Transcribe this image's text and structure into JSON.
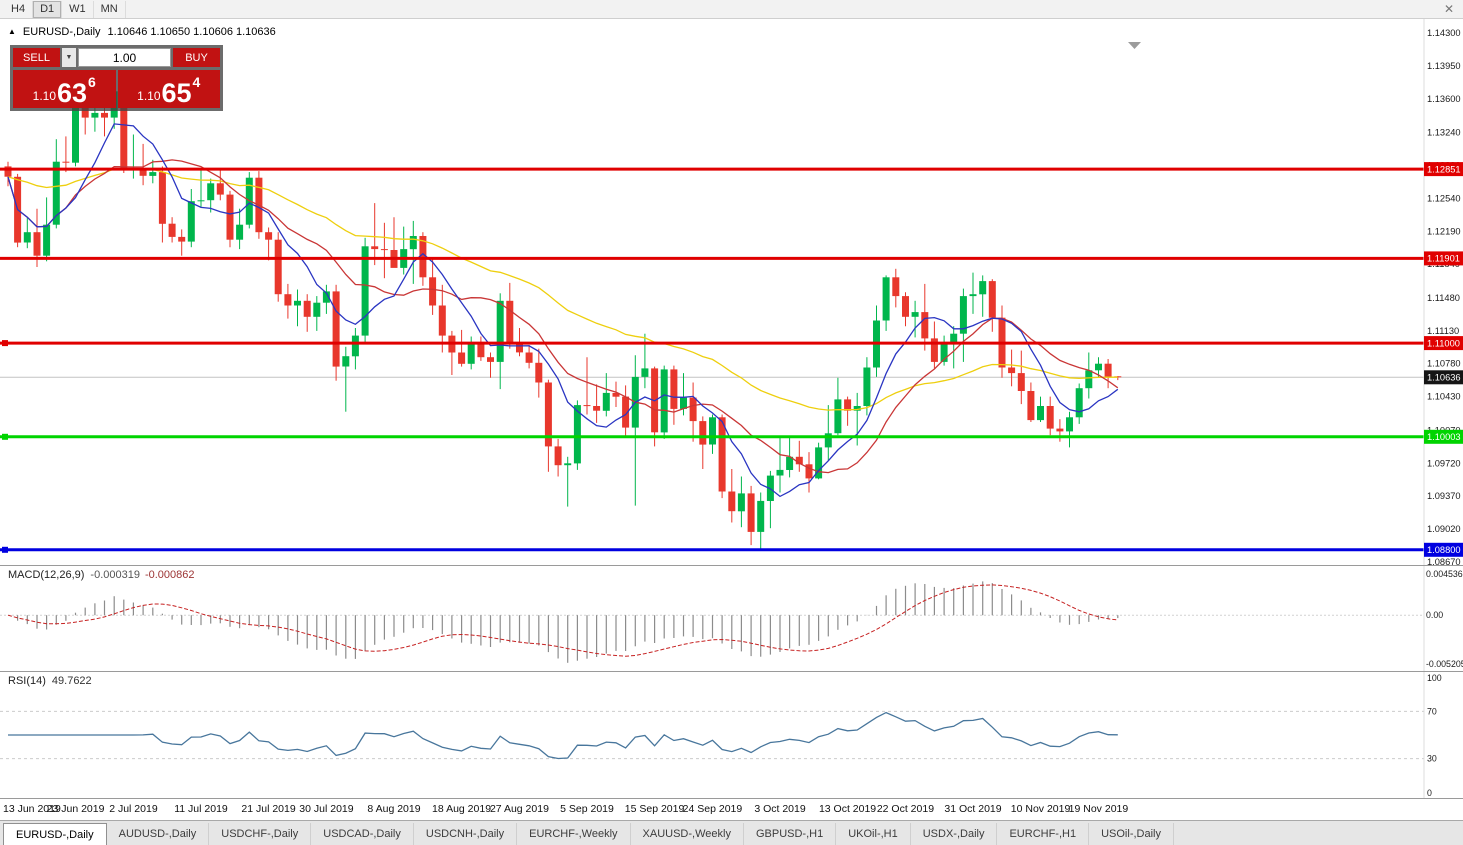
{
  "toolbar": {
    "timeframes": [
      "H4",
      "D1",
      "W1",
      "MN"
    ],
    "active": "D1",
    "close_glyph": "✕"
  },
  "chart": {
    "symbol_title": "EURUSD-,Daily",
    "ohlc": "1.10646 1.10650 1.10606 1.10636"
  },
  "trade_panel": {
    "sell_label": "SELL",
    "buy_label": "BUY",
    "volume": "1.00",
    "spinner_icon": "▼",
    "bid": {
      "prefix": "1.10",
      "big": "63",
      "pip": "6"
    },
    "ask": {
      "prefix": "1.10",
      "big": "65",
      "pip": "4"
    }
  },
  "colors": {
    "bull": "#00b64c",
    "bear": "#e8372c",
    "background": "#ffffff"
  },
  "current_price": {
    "value": 1.10636,
    "label": "1.10636"
  },
  "levels": [
    {
      "label": "1.12851",
      "price": 1.12851,
      "color": "#e00000",
      "handle": false
    },
    {
      "label": "1.11901",
      "price": 1.11901,
      "color": "#e00000",
      "handle": false
    },
    {
      "label": "1.11000",
      "price": 1.11,
      "color": "#e00000",
      "handle": true
    },
    {
      "label": "1.10003",
      "price": 1.10003,
      "color": "#00d400",
      "handle": true
    },
    {
      "label": "1.08800",
      "price": 1.088,
      "color": "#0000e0",
      "handle": true
    }
  ],
  "price_scale": {
    "ticks": [
      "1.14300",
      "1.13950",
      "1.13600",
      "1.13240",
      "1.12890",
      "1.12540",
      "1.12190",
      "1.11840",
      "1.11480",
      "1.11130",
      "1.10780",
      "1.10430",
      "1.10070",
      "1.09720",
      "1.09370",
      "1.09020",
      "1.08670"
    ]
  },
  "moving_averages": [
    {
      "period": 42,
      "method": "ema",
      "color": "#eecf0e"
    },
    {
      "period": 14,
      "method": "sma",
      "color": "#c93636"
    },
    {
      "period": 7,
      "method": "sma",
      "color": "#2a35c2"
    }
  ],
  "macd": {
    "label": "MACD(12,26,9)",
    "value1": "-0.000319",
    "value2": "-0.000862",
    "fast": 12,
    "slow": 26,
    "signal": 9,
    "range": [
      -0.005205,
      0.004536
    ],
    "scale_top": "0.004536",
    "scale_zero": "0.00",
    "scale_bottom": "-0.005205"
  },
  "rsi": {
    "label": "RSI(14)",
    "value": "49.7622",
    "period": 14,
    "guides": [
      70,
      30
    ],
    "scale": [
      100,
      70,
      30,
      0
    ]
  },
  "chart_data": {
    "type": "candlestick",
    "symbol": "EURUSD",
    "timeframe": "Daily",
    "ylim": [
      1.0867,
      1.143
    ],
    "x_labels": [
      {
        "index": 0,
        "label": "13 Jun 2019"
      },
      {
        "index": 7,
        "label": "23 Jun 2019"
      },
      {
        "index": 13,
        "label": "2 Jul 2019"
      },
      {
        "index": 20,
        "label": "11 Jul 2019"
      },
      {
        "index": 27,
        "label": "21 Jul 2019"
      },
      {
        "index": 33,
        "label": "30 Jul 2019"
      },
      {
        "index": 40,
        "label": "8 Aug 2019"
      },
      {
        "index": 47,
        "label": "18 Aug 2019"
      },
      {
        "index": 53,
        "label": "27 Aug 2019"
      },
      {
        "index": 60,
        "label": "5 Sep 2019"
      },
      {
        "index": 67,
        "label": "15 Sep 2019"
      },
      {
        "index": 73,
        "label": "24 Sep 2019"
      },
      {
        "index": 80,
        "label": "3 Oct 2019"
      },
      {
        "index": 87,
        "label": "13 Oct 2019"
      },
      {
        "index": 93,
        "label": "22 Oct 2019"
      },
      {
        "index": 100,
        "label": "31 Oct 2019"
      },
      {
        "index": 107,
        "label": "10 Nov 2019"
      },
      {
        "index": 113,
        "label": "19 Nov 2019"
      }
    ],
    "candles": [
      [
        1.1288,
        1.1293,
        1.1267,
        1.1277
      ],
      [
        1.1277,
        1.128,
        1.1202,
        1.1207
      ],
      [
        1.1207,
        1.1233,
        1.1201,
        1.1218
      ],
      [
        1.1218,
        1.1243,
        1.1181,
        1.1193
      ],
      [
        1.1193,
        1.1255,
        1.1187,
        1.1226
      ],
      [
        1.1226,
        1.1317,
        1.1222,
        1.1293
      ],
      [
        1.1293,
        1.132,
        1.1282,
        1.1292
      ],
      [
        1.1292,
        1.136,
        1.1288,
        1.1355
      ],
      [
        1.1355,
        1.1377,
        1.1322,
        1.134
      ],
      [
        1.134,
        1.1368,
        1.1325,
        1.1345
      ],
      [
        1.1345,
        1.1365,
        1.132,
        1.134
      ],
      [
        1.134,
        1.1372,
        1.1328,
        1.1368
      ],
      [
        1.1368,
        1.1375,
        1.1281,
        1.1285
      ],
      [
        1.1285,
        1.1322,
        1.1275,
        1.1285
      ],
      [
        1.1285,
        1.1312,
        1.1268,
        1.1278
      ],
      [
        1.1278,
        1.1295,
        1.127,
        1.1282
      ],
      [
        1.1282,
        1.1288,
        1.1207,
        1.1227
      ],
      [
        1.1227,
        1.1234,
        1.1207,
        1.1213
      ],
      [
        1.1213,
        1.1221,
        1.1193,
        1.1208
      ],
      [
        1.1208,
        1.1264,
        1.1202,
        1.1251
      ],
      [
        1.1251,
        1.1286,
        1.1244,
        1.1252
      ],
      [
        1.1252,
        1.1275,
        1.1239,
        1.127
      ],
      [
        1.127,
        1.1285,
        1.1252,
        1.1258
      ],
      [
        1.1258,
        1.1262,
        1.1202,
        1.121
      ],
      [
        1.121,
        1.1243,
        1.12,
        1.1226
      ],
      [
        1.1226,
        1.1282,
        1.1222,
        1.1276
      ],
      [
        1.1276,
        1.1283,
        1.1211,
        1.1218
      ],
      [
        1.1218,
        1.1223,
        1.1188,
        1.121
      ],
      [
        1.121,
        1.1218,
        1.1144,
        1.1152
      ],
      [
        1.1152,
        1.1163,
        1.1126,
        1.114
      ],
      [
        1.114,
        1.1157,
        1.1118,
        1.1145
      ],
      [
        1.1145,
        1.1152,
        1.1112,
        1.1128
      ],
      [
        1.1128,
        1.115,
        1.1113,
        1.1143
      ],
      [
        1.1143,
        1.1162,
        1.1131,
        1.1155
      ],
      [
        1.1155,
        1.1162,
        1.106,
        1.1075
      ],
      [
        1.1075,
        1.1096,
        1.1027,
        1.1086
      ],
      [
        1.1086,
        1.1116,
        1.1072,
        1.1108
      ],
      [
        1.1108,
        1.1212,
        1.1101,
        1.1203
      ],
      [
        1.1203,
        1.1249,
        1.1183,
        1.12
      ],
      [
        1.12,
        1.1228,
        1.1169,
        1.1199
      ],
      [
        1.1199,
        1.1234,
        1.1181,
        1.118
      ],
      [
        1.118,
        1.1224,
        1.1173,
        1.12
      ],
      [
        1.12,
        1.123,
        1.1163,
        1.1214
      ],
      [
        1.1214,
        1.1218,
        1.1161,
        1.117
      ],
      [
        1.117,
        1.119,
        1.113,
        1.114
      ],
      [
        1.114,
        1.1162,
        1.109,
        1.1108
      ],
      [
        1.1108,
        1.1113,
        1.1066,
        1.109
      ],
      [
        1.109,
        1.1114,
        1.1075,
        1.1078
      ],
      [
        1.1078,
        1.1107,
        1.1072,
        1.11
      ],
      [
        1.11,
        1.1107,
        1.1081,
        1.1085
      ],
      [
        1.1085,
        1.109,
        1.1063,
        1.108
      ],
      [
        1.108,
        1.1153,
        1.1051,
        1.1145
      ],
      [
        1.1145,
        1.1164,
        1.1094,
        1.1101
      ],
      [
        1.1101,
        1.1116,
        1.1086,
        1.109
      ],
      [
        1.109,
        1.1098,
        1.1073,
        1.1079
      ],
      [
        1.1079,
        1.1094,
        1.1042,
        1.1058
      ],
      [
        1.1058,
        1.1061,
        1.0963,
        1.099
      ],
      [
        1.099,
        1.0998,
        1.0958,
        1.097
      ],
      [
        1.097,
        1.0979,
        1.0926,
        1.0972
      ],
      [
        1.0972,
        1.1039,
        1.0965,
        1.1034
      ],
      [
        1.1034,
        1.1085,
        1.1024,
        1.1033
      ],
      [
        1.1033,
        1.1056,
        1.1015,
        1.1028
      ],
      [
        1.1028,
        1.1068,
        1.1022,
        1.1047
      ],
      [
        1.1047,
        1.1059,
        1.1032,
        1.1043
      ],
      [
        1.1043,
        1.1055,
        1.1001,
        1.101
      ],
      [
        1.101,
        1.1087,
        1.0927,
        1.1064
      ],
      [
        1.1064,
        1.111,
        1.1052,
        1.1073
      ],
      [
        1.1073,
        1.1075,
        1.099,
        1.1005
      ],
      [
        1.1005,
        1.1076,
        1.0998,
        1.1072
      ],
      [
        1.1072,
        1.1076,
        1.1013,
        1.103
      ],
      [
        1.103,
        1.1068,
        1.1023,
        1.1042
      ],
      [
        1.1042,
        1.1058,
        1.0995,
        1.1017
      ],
      [
        1.1017,
        1.1022,
        1.0966,
        1.0992
      ],
      [
        1.0992,
        1.1024,
        1.0982,
        1.1021
      ],
      [
        1.1021,
        1.1024,
        1.0935,
        1.0942
      ],
      [
        1.0942,
        1.0966,
        1.0909,
        1.0921
      ],
      [
        1.0921,
        1.0958,
        1.0904,
        1.094
      ],
      [
        1.094,
        1.0948,
        1.0885,
        1.0899
      ],
      [
        1.0899,
        1.0941,
        1.0879,
        1.0932
      ],
      [
        1.0932,
        1.0964,
        1.0903,
        1.0959
      ],
      [
        1.0959,
        1.0999,
        1.0941,
        1.0965
      ],
      [
        1.0965,
        1.0999,
        1.0957,
        1.0979
      ],
      [
        1.0979,
        1.0996,
        1.0963,
        1.0971
      ],
      [
        1.0971,
        1.0984,
        1.0941,
        1.0956
      ],
      [
        1.0956,
        1.0994,
        1.0955,
        1.0989
      ],
      [
        1.0989,
        1.1034,
        1.0975,
        1.1004
      ],
      [
        1.1004,
        1.1063,
        1.1002,
        1.104
      ],
      [
        1.104,
        1.1043,
        1.1012,
        1.1028
      ],
      [
        1.1028,
        1.1047,
        1.0991,
        1.1033
      ],
      [
        1.1033,
        1.1085,
        1.1023,
        1.1074
      ],
      [
        1.1074,
        1.114,
        1.1064,
        1.1124
      ],
      [
        1.1124,
        1.1172,
        1.1113,
        1.117
      ],
      [
        1.117,
        1.1179,
        1.1138,
        1.115
      ],
      [
        1.115,
        1.1154,
        1.1118,
        1.1128
      ],
      [
        1.1128,
        1.1145,
        1.1106,
        1.1133
      ],
      [
        1.1133,
        1.1163,
        1.1092,
        1.1105
      ],
      [
        1.1105,
        1.1123,
        1.1073,
        1.108
      ],
      [
        1.108,
        1.1108,
        1.1076,
        1.11
      ],
      [
        1.11,
        1.1118,
        1.1073,
        1.111
      ],
      [
        1.111,
        1.1158,
        1.108,
        1.115
      ],
      [
        1.115,
        1.1175,
        1.1131,
        1.1152
      ],
      [
        1.1152,
        1.1172,
        1.1128,
        1.1166
      ],
      [
        1.1166,
        1.1168,
        1.1112,
        1.1127
      ],
      [
        1.1127,
        1.114,
        1.1063,
        1.1074
      ],
      [
        1.1074,
        1.1093,
        1.1054,
        1.1068
      ],
      [
        1.1068,
        1.1092,
        1.1035,
        1.1049
      ],
      [
        1.1049,
        1.1058,
        1.1016,
        1.1018
      ],
      [
        1.1018,
        1.1043,
        1.1016,
        1.1033
      ],
      [
        1.1033,
        1.1043,
        1.1002,
        1.1009
      ],
      [
        1.1009,
        1.1019,
        1.0995,
        1.1006
      ],
      [
        1.1006,
        1.1027,
        1.0989,
        1.1021
      ],
      [
        1.1021,
        1.1057,
        1.1014,
        1.1052
      ],
      [
        1.1052,
        1.109,
        1.1041,
        1.1071
      ],
      [
        1.1071,
        1.1085,
        1.1064,
        1.1078
      ],
      [
        1.1078,
        1.1083,
        1.1052,
        1.1064
      ],
      [
        1.10646,
        1.1065,
        1.10606,
        1.10636
      ]
    ]
  },
  "tabs": [
    {
      "label": "EURUSD-,Daily",
      "active": true
    },
    {
      "label": "AUDUSD-,Daily",
      "active": false
    },
    {
      "label": "USDCHF-,Daily",
      "active": false
    },
    {
      "label": "USDCAD-,Daily",
      "active": false
    },
    {
      "label": "USDCNH-,Daily",
      "active": false
    },
    {
      "label": "EURCHF-,Weekly",
      "active": false
    },
    {
      "label": "XAUUSD-,Weekly",
      "active": false
    },
    {
      "label": "GBPUSD-,H1",
      "active": false
    },
    {
      "label": "UKOil-,H1",
      "active": false
    },
    {
      "label": "USDX-,Daily",
      "active": false
    },
    {
      "label": "EURCHF-,H1",
      "active": false
    },
    {
      "label": "USOil-,Daily",
      "active": false
    }
  ]
}
